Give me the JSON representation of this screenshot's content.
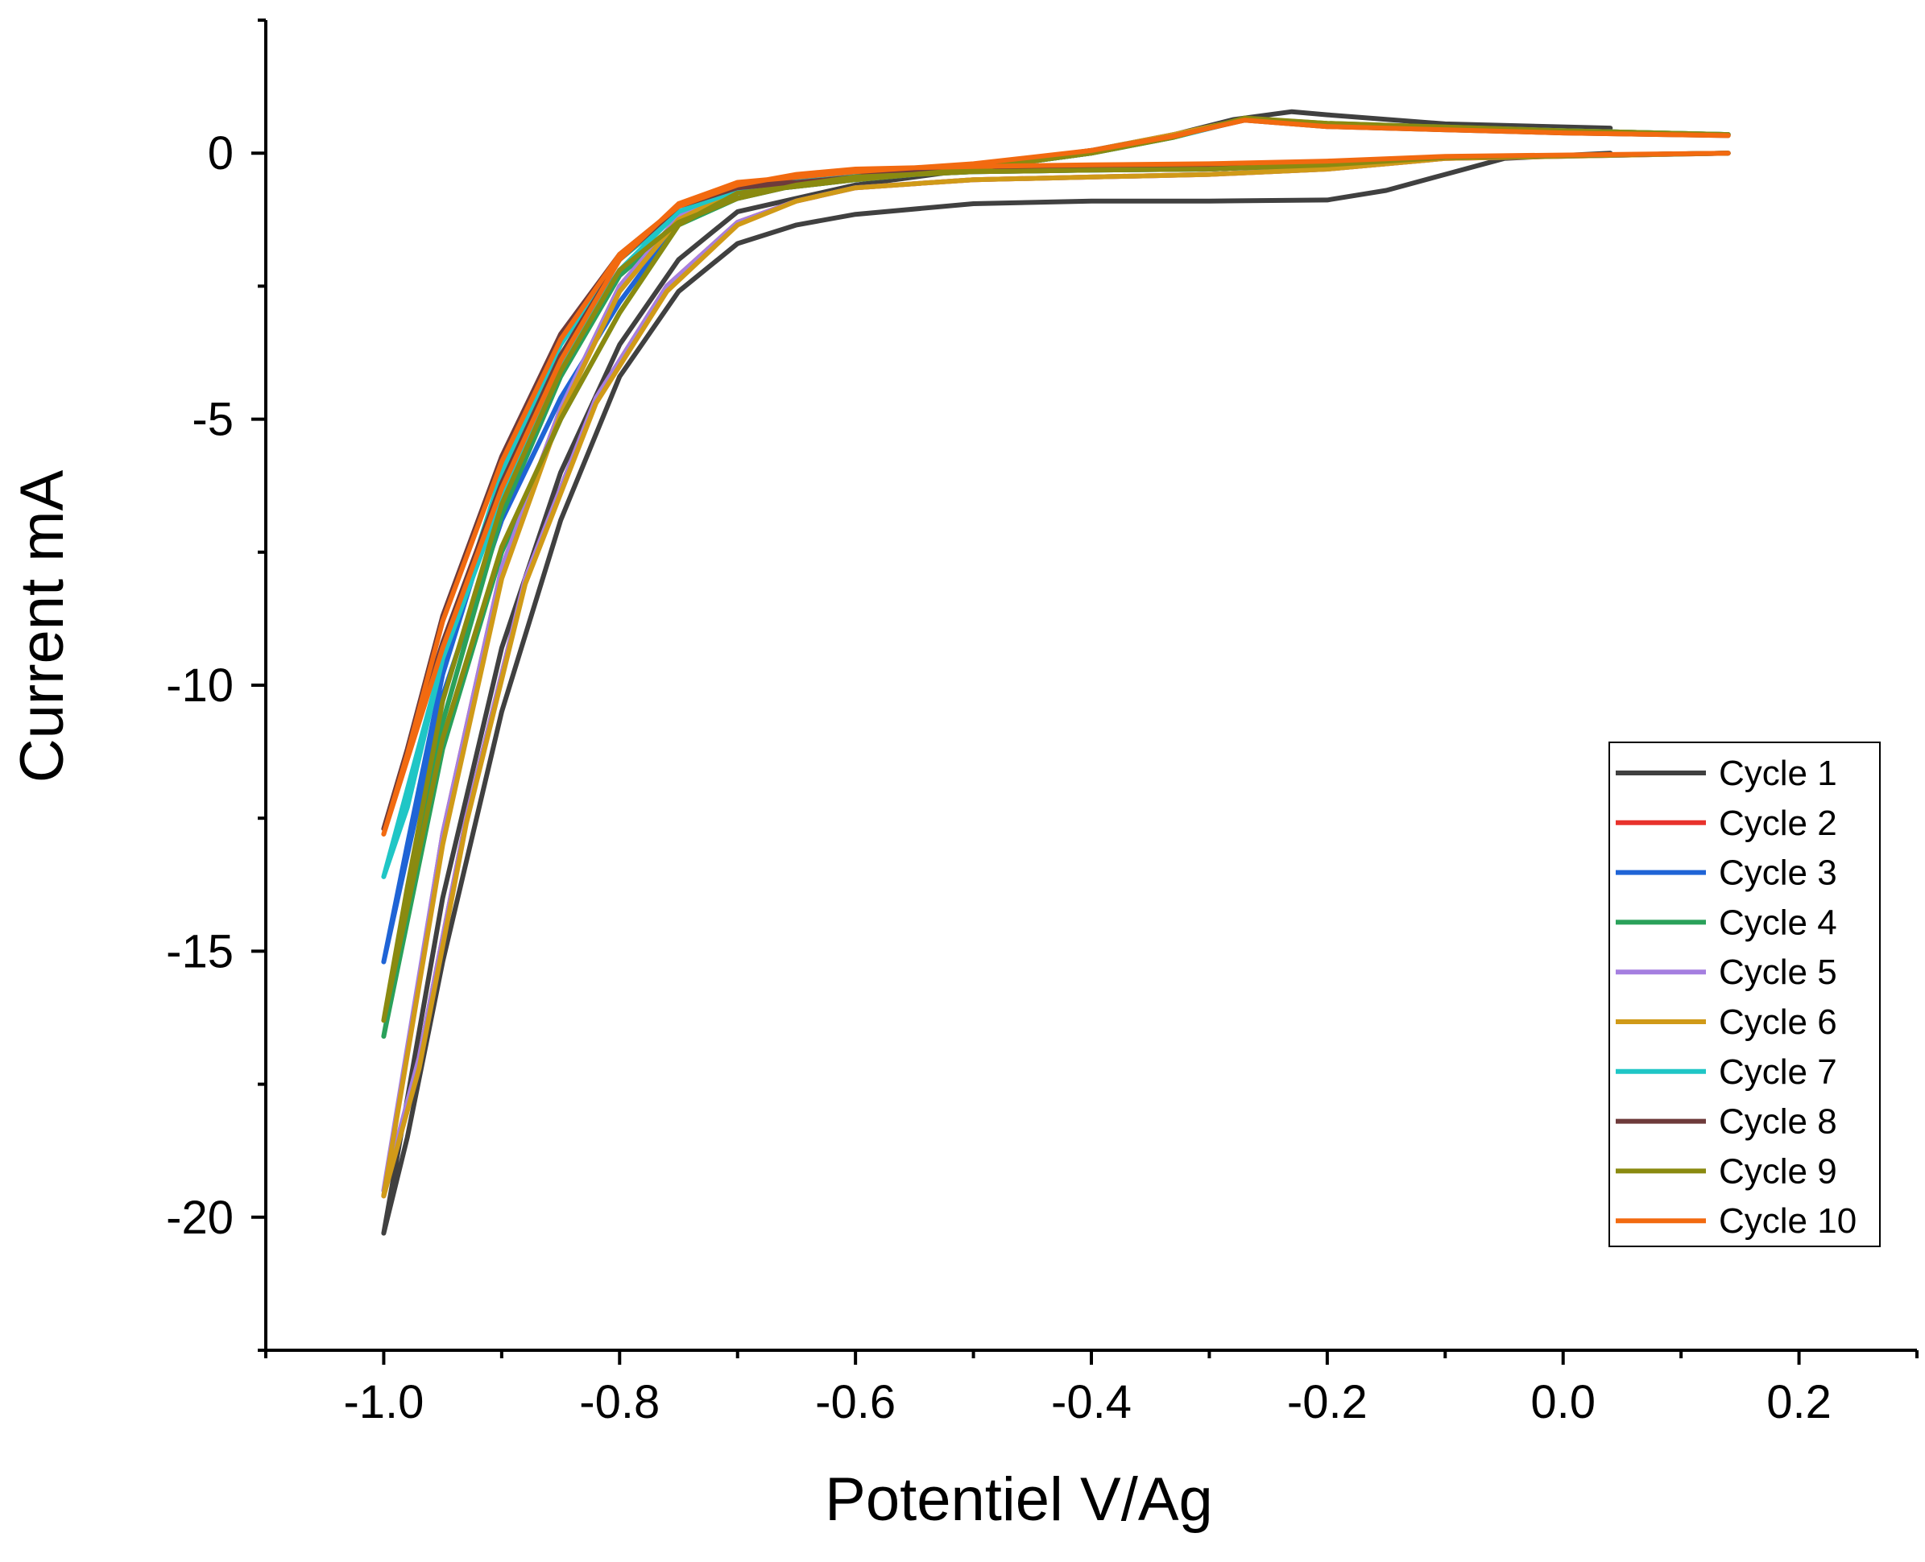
{
  "chart_data": {
    "type": "line",
    "xlabel": "Potentiel V/Ag",
    "ylabel": "Current mA",
    "xlim": [
      -1.1,
      0.3
    ],
    "ylim": [
      -22.5,
      2.5
    ],
    "xticks": [
      -1.0,
      -0.8,
      -0.6,
      -0.4,
      -0.2,
      0.0,
      0.2
    ],
    "xtick_labels": [
      "-1.0",
      "-0.8",
      "-0.6",
      "-0.4",
      "-0.2",
      "0.0",
      "0.2"
    ],
    "yticks": [
      0,
      -5,
      -10,
      -15,
      -20
    ],
    "ytick_labels": [
      "0",
      "-5",
      "-10",
      "-15",
      "-20"
    ],
    "grid": false,
    "legend_position": "right",
    "series": [
      {
        "name": "Cycle 1",
        "color": "#404040",
        "points": [
          [
            0.04,
            0.47
          ],
          [
            -0.1,
            0.55
          ],
          [
            -0.2,
            0.72
          ],
          [
            -0.23,
            0.78
          ],
          [
            -0.28,
            0.63
          ],
          [
            -0.33,
            0.35
          ],
          [
            -0.4,
            0.0
          ],
          [
            -0.5,
            -0.3
          ],
          [
            -0.6,
            -0.6
          ],
          [
            -0.7,
            -1.1
          ],
          [
            -0.75,
            -2.0
          ],
          [
            -0.8,
            -3.6
          ],
          [
            -0.85,
            -6.0
          ],
          [
            -0.9,
            -9.3
          ],
          [
            -0.95,
            -14.0
          ],
          [
            -1.0,
            -20.3
          ],
          [
            -0.98,
            -18.5
          ],
          [
            -0.95,
            -15.2
          ],
          [
            -0.9,
            -10.5
          ],
          [
            -0.85,
            -6.9
          ],
          [
            -0.8,
            -4.2
          ],
          [
            -0.75,
            -2.6
          ],
          [
            -0.7,
            -1.7
          ],
          [
            -0.65,
            -1.35
          ],
          [
            -0.6,
            -1.15
          ],
          [
            -0.5,
            -0.95
          ],
          [
            -0.4,
            -0.9
          ],
          [
            -0.3,
            -0.9
          ],
          [
            -0.2,
            -0.88
          ],
          [
            -0.15,
            -0.7
          ],
          [
            -0.1,
            -0.4
          ],
          [
            -0.05,
            -0.1
          ],
          [
            0.04,
            0.0
          ]
        ]
      },
      {
        "name": "Cycle 2",
        "color": "#e8322c",
        "points": [
          [
            0.14,
            0.35
          ],
          [
            0.0,
            0.4
          ],
          [
            -0.2,
            0.52
          ],
          [
            -0.27,
            0.63
          ],
          [
            -0.33,
            0.35
          ],
          [
            -0.4,
            0.05
          ],
          [
            -0.5,
            -0.25
          ],
          [
            -0.6,
            -0.45
          ],
          [
            -0.7,
            -0.7
          ],
          [
            -0.75,
            -1.2
          ],
          [
            -0.8,
            -2.5
          ],
          [
            -0.85,
            -4.8
          ],
          [
            -0.9,
            -7.8
          ],
          [
            -0.95,
            -12.8
          ],
          [
            -1.0,
            -19.6
          ],
          [
            -0.97,
            -17.0
          ],
          [
            -0.93,
            -12.5
          ],
          [
            -0.88,
            -8.0
          ],
          [
            -0.82,
            -4.6
          ],
          [
            -0.76,
            -2.5
          ],
          [
            -0.7,
            -1.3
          ],
          [
            -0.65,
            -0.9
          ],
          [
            -0.6,
            -0.65
          ],
          [
            -0.5,
            -0.5
          ],
          [
            -0.4,
            -0.45
          ],
          [
            -0.3,
            -0.4
          ],
          [
            -0.2,
            -0.3
          ],
          [
            -0.1,
            -0.1
          ],
          [
            0.14,
            0.0
          ]
        ]
      },
      {
        "name": "Cycle 3",
        "color": "#1f64d6",
        "points": [
          [
            0.14,
            0.35
          ],
          [
            0.0,
            0.42
          ],
          [
            -0.2,
            0.55
          ],
          [
            -0.27,
            0.63
          ],
          [
            -0.33,
            0.3
          ],
          [
            -0.4,
            0.0
          ],
          [
            -0.5,
            -0.3
          ],
          [
            -0.6,
            -0.5
          ],
          [
            -0.7,
            -0.75
          ],
          [
            -0.75,
            -1.3
          ],
          [
            -0.8,
            -2.8
          ],
          [
            -0.85,
            -4.6
          ],
          [
            -0.9,
            -6.9
          ],
          [
            -0.95,
            -10.2
          ],
          [
            -1.0,
            -15.2
          ],
          [
            -0.98,
            -13.0
          ],
          [
            -0.95,
            -9.8
          ],
          [
            -0.9,
            -6.2
          ],
          [
            -0.85,
            -3.9
          ],
          [
            -0.8,
            -2.2
          ],
          [
            -0.75,
            -1.3
          ],
          [
            -0.7,
            -0.85
          ],
          [
            -0.65,
            -0.6
          ],
          [
            -0.6,
            -0.45
          ],
          [
            -0.5,
            -0.35
          ],
          [
            -0.4,
            -0.32
          ],
          [
            -0.3,
            -0.3
          ],
          [
            -0.2,
            -0.22
          ],
          [
            -0.1,
            -0.08
          ],
          [
            0.14,
            0.0
          ]
        ]
      },
      {
        "name": "Cycle 4",
        "color": "#2aa15a",
        "points": [
          [
            0.14,
            0.35
          ],
          [
            0.0,
            0.42
          ],
          [
            -0.2,
            0.56
          ],
          [
            -0.27,
            0.65
          ],
          [
            -0.33,
            0.3
          ],
          [
            -0.4,
            0.0
          ],
          [
            -0.5,
            -0.3
          ],
          [
            -0.6,
            -0.5
          ],
          [
            -0.7,
            -0.75
          ],
          [
            -0.75,
            -1.35
          ],
          [
            -0.8,
            -3.0
          ],
          [
            -0.85,
            -5.0
          ],
          [
            -0.9,
            -7.5
          ],
          [
            -0.95,
            -11.2
          ],
          [
            -1.0,
            -16.6
          ],
          [
            -0.98,
            -14.2
          ],
          [
            -0.95,
            -10.7
          ],
          [
            -0.9,
            -6.8
          ],
          [
            -0.85,
            -4.2
          ],
          [
            -0.8,
            -2.3
          ],
          [
            -0.75,
            -1.35
          ],
          [
            -0.7,
            -0.85
          ],
          [
            -0.65,
            -0.6
          ],
          [
            -0.6,
            -0.45
          ],
          [
            -0.5,
            -0.35
          ],
          [
            -0.4,
            -0.32
          ],
          [
            -0.3,
            -0.3
          ],
          [
            -0.2,
            -0.22
          ],
          [
            -0.1,
            -0.08
          ],
          [
            0.14,
            0.0
          ]
        ]
      },
      {
        "name": "Cycle 5",
        "color": "#a57fe0",
        "points": [
          [
            0.14,
            0.35
          ],
          [
            0.0,
            0.4
          ],
          [
            -0.2,
            0.52
          ],
          [
            -0.27,
            0.63
          ],
          [
            -0.33,
            0.35
          ],
          [
            -0.4,
            0.05
          ],
          [
            -0.5,
            -0.25
          ],
          [
            -0.6,
            -0.45
          ],
          [
            -0.7,
            -0.7
          ],
          [
            -0.75,
            -1.2
          ],
          [
            -0.8,
            -2.5
          ],
          [
            -0.85,
            -4.8
          ],
          [
            -0.9,
            -7.8
          ],
          [
            -0.95,
            -12.8
          ],
          [
            -1.0,
            -19.5
          ],
          [
            -0.97,
            -17.0
          ],
          [
            -0.93,
            -12.5
          ],
          [
            -0.88,
            -8.0
          ],
          [
            -0.82,
            -4.6
          ],
          [
            -0.76,
            -2.5
          ],
          [
            -0.7,
            -1.3
          ],
          [
            -0.65,
            -0.9
          ],
          [
            -0.6,
            -0.65
          ],
          [
            -0.5,
            -0.5
          ],
          [
            -0.4,
            -0.45
          ],
          [
            -0.3,
            -0.4
          ],
          [
            -0.2,
            -0.3
          ],
          [
            -0.1,
            -0.1
          ],
          [
            0.14,
            0.0
          ]
        ]
      },
      {
        "name": "Cycle 6",
        "color": "#d09a18",
        "points": [
          [
            0.14,
            0.35
          ],
          [
            0.0,
            0.42
          ],
          [
            -0.2,
            0.53
          ],
          [
            -0.27,
            0.64
          ],
          [
            -0.33,
            0.35
          ],
          [
            -0.4,
            0.05
          ],
          [
            -0.5,
            -0.25
          ],
          [
            -0.6,
            -0.45
          ],
          [
            -0.7,
            -0.7
          ],
          [
            -0.75,
            -1.25
          ],
          [
            -0.8,
            -2.6
          ],
          [
            -0.85,
            -4.9
          ],
          [
            -0.9,
            -8.0
          ],
          [
            -0.95,
            -13.0
          ],
          [
            -1.0,
            -19.6
          ],
          [
            -0.97,
            -17.2
          ],
          [
            -0.93,
            -12.6
          ],
          [
            -0.88,
            -8.1
          ],
          [
            -0.82,
            -4.7
          ],
          [
            -0.76,
            -2.6
          ],
          [
            -0.7,
            -1.35
          ],
          [
            -0.65,
            -0.9
          ],
          [
            -0.6,
            -0.65
          ],
          [
            -0.5,
            -0.5
          ],
          [
            -0.4,
            -0.45
          ],
          [
            -0.3,
            -0.4
          ],
          [
            -0.2,
            -0.3
          ],
          [
            -0.1,
            -0.1
          ],
          [
            0.14,
            0.0
          ]
        ]
      },
      {
        "name": "Cycle 7",
        "color": "#1fc6c6",
        "points": [
          [
            0.14,
            0.35
          ],
          [
            0.0,
            0.42
          ],
          [
            -0.2,
            0.55
          ],
          [
            -0.27,
            0.63
          ],
          [
            -0.33,
            0.3
          ],
          [
            -0.4,
            0.0
          ],
          [
            -0.5,
            -0.3
          ],
          [
            -0.6,
            -0.5
          ],
          [
            -0.7,
            -0.7
          ],
          [
            -0.75,
            -1.1
          ],
          [
            -0.8,
            -2.2
          ],
          [
            -0.85,
            -4.0
          ],
          [
            -0.9,
            -6.5
          ],
          [
            -0.95,
            -9.5
          ],
          [
            -1.0,
            -13.6
          ],
          [
            -0.98,
            -12.3
          ],
          [
            -0.95,
            -9.5
          ],
          [
            -0.9,
            -6.0
          ],
          [
            -0.85,
            -3.6
          ],
          [
            -0.8,
            -2.0
          ],
          [
            -0.75,
            -1.1
          ],
          [
            -0.7,
            -0.7
          ],
          [
            -0.65,
            -0.5
          ],
          [
            -0.6,
            -0.4
          ],
          [
            -0.5,
            -0.3
          ],
          [
            -0.4,
            -0.28
          ],
          [
            -0.3,
            -0.25
          ],
          [
            -0.2,
            -0.2
          ],
          [
            -0.1,
            -0.08
          ],
          [
            0.14,
            0.0
          ]
        ]
      },
      {
        "name": "Cycle 8",
        "color": "#6e3b3b",
        "points": [
          [
            0.14,
            0.33
          ],
          [
            0.0,
            0.38
          ],
          [
            -0.2,
            0.5
          ],
          [
            -0.27,
            0.62
          ],
          [
            -0.33,
            0.32
          ],
          [
            -0.4,
            0.05
          ],
          [
            -0.5,
            -0.25
          ],
          [
            -0.6,
            -0.45
          ],
          [
            -0.7,
            -0.65
          ],
          [
            -0.75,
            -1.0
          ],
          [
            -0.8,
            -2.0
          ],
          [
            -0.85,
            -3.8
          ],
          [
            -0.9,
            -6.2
          ],
          [
            -0.95,
            -9.2
          ],
          [
            -1.0,
            -12.7
          ],
          [
            -0.98,
            -11.2
          ],
          [
            -0.95,
            -8.7
          ],
          [
            -0.9,
            -5.7
          ],
          [
            -0.85,
            -3.4
          ],
          [
            -0.8,
            -1.9
          ],
          [
            -0.75,
            -1.0
          ],
          [
            -0.7,
            -0.65
          ],
          [
            -0.65,
            -0.45
          ],
          [
            -0.6,
            -0.35
          ],
          [
            -0.5,
            -0.3
          ],
          [
            -0.4,
            -0.27
          ],
          [
            -0.3,
            -0.25
          ],
          [
            -0.2,
            -0.2
          ],
          [
            -0.1,
            -0.08
          ],
          [
            0.14,
            0.0
          ]
        ]
      },
      {
        "name": "Cycle 9",
        "color": "#8a8a10",
        "points": [
          [
            0.14,
            0.35
          ],
          [
            0.0,
            0.42
          ],
          [
            -0.2,
            0.56
          ],
          [
            -0.27,
            0.66
          ],
          [
            -0.33,
            0.3
          ],
          [
            -0.4,
            0.0
          ],
          [
            -0.5,
            -0.3
          ],
          [
            -0.6,
            -0.5
          ],
          [
            -0.7,
            -0.75
          ],
          [
            -0.75,
            -1.35
          ],
          [
            -0.8,
            -3.0
          ],
          [
            -0.85,
            -5.0
          ],
          [
            -0.9,
            -7.4
          ],
          [
            -0.95,
            -11.0
          ],
          [
            -1.0,
            -16.3
          ],
          [
            -0.98,
            -13.8
          ],
          [
            -0.95,
            -10.3
          ],
          [
            -0.9,
            -6.6
          ],
          [
            -0.85,
            -4.1
          ],
          [
            -0.8,
            -2.2
          ],
          [
            -0.75,
            -1.3
          ],
          [
            -0.7,
            -0.85
          ],
          [
            -0.65,
            -0.6
          ],
          [
            -0.6,
            -0.45
          ],
          [
            -0.5,
            -0.35
          ],
          [
            -0.4,
            -0.32
          ],
          [
            -0.3,
            -0.3
          ],
          [
            -0.2,
            -0.22
          ],
          [
            -0.1,
            -0.08
          ],
          [
            0.14,
            0.0
          ]
        ]
      },
      {
        "name": "Cycle 10",
        "color": "#f26a10",
        "points": [
          [
            0.14,
            0.33
          ],
          [
            0.0,
            0.38
          ],
          [
            -0.2,
            0.5
          ],
          [
            -0.27,
            0.62
          ],
          [
            -0.33,
            0.32
          ],
          [
            -0.4,
            0.05
          ],
          [
            -0.5,
            -0.2
          ],
          [
            -0.6,
            -0.35
          ],
          [
            -0.7,
            -0.55
          ],
          [
            -0.75,
            -0.95
          ],
          [
            -0.8,
            -2.0
          ],
          [
            -0.85,
            -3.9
          ],
          [
            -0.9,
            -6.3
          ],
          [
            -0.95,
            -9.3
          ],
          [
            -1.0,
            -12.8
          ],
          [
            -0.98,
            -11.3
          ],
          [
            -0.95,
            -8.8
          ],
          [
            -0.9,
            -5.8
          ],
          [
            -0.85,
            -3.5
          ],
          [
            -0.8,
            -1.9
          ],
          [
            -0.75,
            -1.0
          ],
          [
            -0.7,
            -0.6
          ],
          [
            -0.65,
            -0.4
          ],
          [
            -0.6,
            -0.3
          ],
          [
            -0.5,
            -0.25
          ],
          [
            -0.4,
            -0.22
          ],
          [
            -0.3,
            -0.2
          ],
          [
            -0.2,
            -0.15
          ],
          [
            -0.1,
            -0.06
          ],
          [
            0.14,
            0.0
          ]
        ]
      }
    ]
  }
}
